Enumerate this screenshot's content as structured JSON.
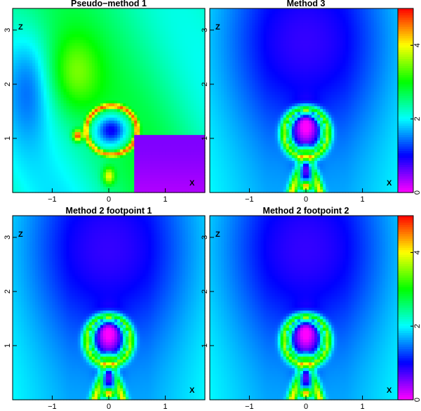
{
  "panels": [
    {
      "title": "Pseudo−method 1",
      "kind": "pseudo",
      "colorbar": true
    },
    {
      "title": "Method 3",
      "kind": "method",
      "colorbar": true
    },
    {
      "title": "Method 2 footpoint 1",
      "kind": "method",
      "colorbar": false
    },
    {
      "title": "Method 2 footpoint 2",
      "kind": "method",
      "colorbar": false
    }
  ],
  "axes": {
    "x_ticks": [
      "−1",
      "0",
      "1"
    ],
    "y_ticks": [
      "3",
      "2",
      "1"
    ],
    "x_label": "X",
    "y_label": "Z",
    "xlim": [
      -1.7,
      1.7
    ],
    "ylim": [
      0,
      3.4
    ]
  },
  "colorbar": {
    "ticks": [
      "4",
      "2",
      "0"
    ],
    "range": [
      0,
      5
    ]
  }
}
